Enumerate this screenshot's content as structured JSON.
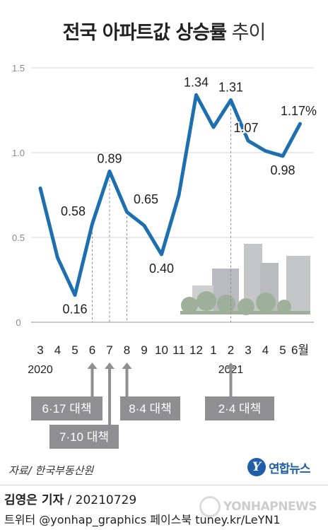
{
  "title": {
    "bold": "전국 아파트값 상승률",
    "light": "추이"
  },
  "chart_data": {
    "type": "line",
    "categories": [
      "3",
      "4",
      "5",
      "6",
      "7",
      "8",
      "9",
      "10",
      "11",
      "12",
      "1",
      "2",
      "3",
      "4",
      "5",
      "6월"
    ],
    "values": [
      0.79,
      0.38,
      0.16,
      0.58,
      0.89,
      0.65,
      0.57,
      0.4,
      0.75,
      1.34,
      1.15,
      1.31,
      1.07,
      1.01,
      0.98,
      1.17
    ],
    "data_labels": [
      "",
      "",
      "0.16",
      "0.58",
      "0.89",
      "0.65",
      "",
      "0.40",
      "",
      "1.34",
      "",
      "1.31",
      "1.07",
      "",
      "0.98",
      "1.17%"
    ],
    "year_labels": [
      {
        "at": 0,
        "text": "2020"
      },
      {
        "at": 11,
        "text": "2021"
      }
    ],
    "y_ticks": [
      0,
      0.5,
      1.0,
      1.5
    ],
    "y_tick_labels": [
      "0",
      "0.5",
      "1.0",
      "1.5"
    ],
    "ylim": [
      0,
      1.5
    ],
    "line_color": "#1d6fb0",
    "grid": true,
    "policy_markers": [
      {
        "at": 3,
        "label": "6·17 대책"
      },
      {
        "at": 4,
        "label": "7·10 대책"
      },
      {
        "at": 5,
        "label": "8·4 대책"
      },
      {
        "at": 11,
        "label": "2·4 대책"
      }
    ]
  },
  "footer": {
    "source": "자료/ 한국부동산원",
    "logo_mark": "Y",
    "logo_text": "연합뉴스",
    "author": "김영은 기자",
    "date": " / 20210729",
    "social": "트위터 @yonhap_graphics  페이스북 tuney.kr/LeYN1",
    "watermark": "YONHAPNEWS"
  }
}
